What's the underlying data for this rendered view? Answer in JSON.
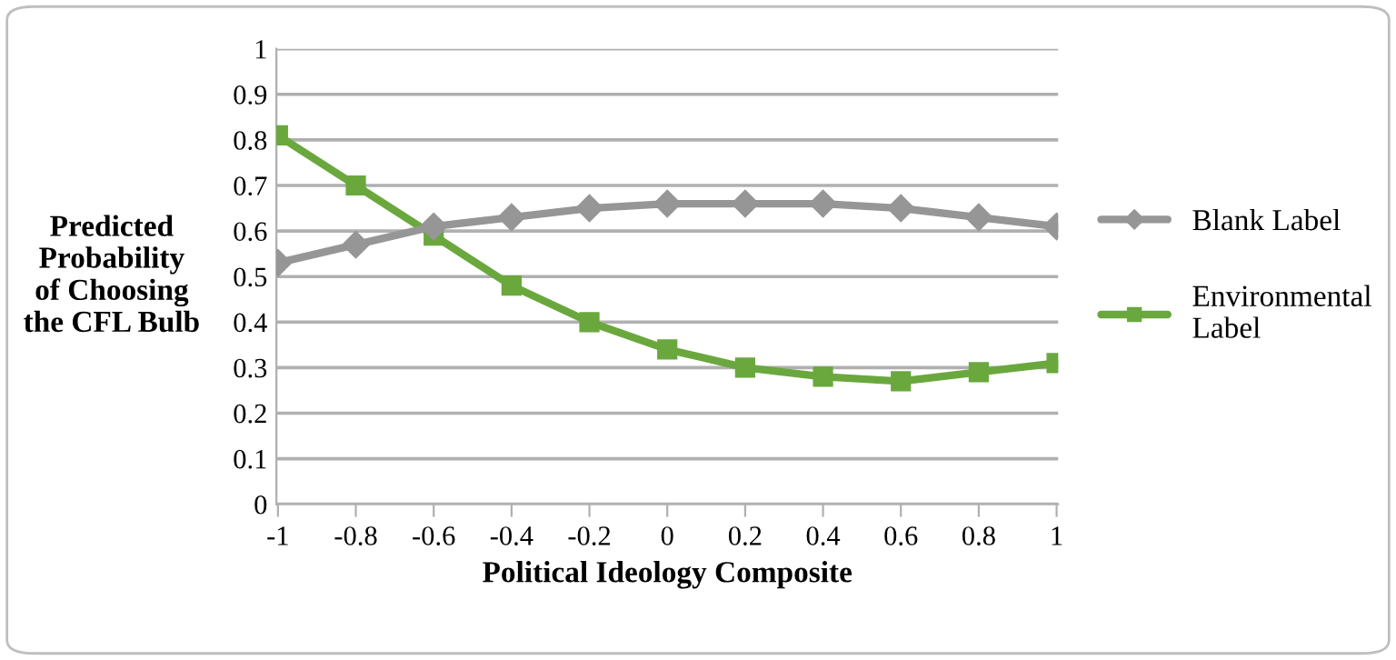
{
  "chart_data": {
    "type": "line",
    "xlabel": "Political Ideology Composite",
    "ylabel": "Predicted\nProbability\nof Choosing\nthe CFL Bulb",
    "categories": [
      "-1",
      "-0.8",
      "-0.6",
      "-0.4",
      "-0.2",
      "0",
      "0.2",
      "0.4",
      "0.6",
      "0.8",
      "1"
    ],
    "series": [
      {
        "name": "Blank Label",
        "color": "#969696",
        "marker": "diamond",
        "values": [
          0.53,
          0.57,
          0.61,
          0.63,
          0.65,
          0.66,
          0.66,
          0.66,
          0.65,
          0.63,
          0.61
        ]
      },
      {
        "name": "Environmental\nLabel",
        "color": "#6aa83e",
        "marker": "square",
        "values": [
          0.81,
          0.7,
          0.59,
          0.48,
          0.4,
          0.34,
          0.3,
          0.28,
          0.27,
          0.29,
          0.31
        ]
      }
    ],
    "ylim": [
      0,
      1
    ],
    "yticks": [
      0,
      0.1,
      0.2,
      0.3,
      0.4,
      0.5,
      0.6,
      0.7,
      0.8,
      0.9,
      1
    ],
    "grid": "y",
    "legend": "right"
  }
}
